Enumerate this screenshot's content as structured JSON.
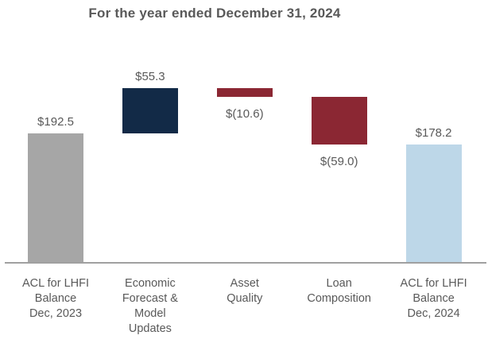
{
  "title": "For the year ended December 31, 2024",
  "colors": {
    "start_total_bar": "#A6A6A6",
    "increase_bar": "#122A47",
    "decrease_bar": "#8B2733",
    "end_total_bar": "#BDD7E8",
    "text": "#595959",
    "axis_line": "#A0A0A0"
  },
  "chart_data": {
    "type": "bar",
    "subtype": "waterfall",
    "title": "For the year ended December 31, 2024",
    "categories": [
      "ACL for LHFI Balance Dec, 2023",
      "Economic Forecast & Model Updates",
      "Asset Quality",
      "Loan Composition",
      "ACL for LHFI Balance Dec, 2024"
    ],
    "values": [
      192.5,
      55.3,
      -10.6,
      -59.0,
      178.2
    ],
    "xlabel": "",
    "ylabel": "",
    "gridlines": false,
    "legend": false,
    "bars": [
      {
        "category": "ACL for LHFI Balance Dec, 2023",
        "category_lines": [
          "ACL for LHFI",
          "Balance",
          "Dec, 2023"
        ],
        "value": 192.5,
        "display_value": "$192.5",
        "kind": "total",
        "color": "#A6A6A6",
        "value_label_position": "above"
      },
      {
        "category": "Economic Forecast & Model Updates",
        "category_lines": [
          "Economic",
          "Forecast &",
          "Model",
          "Updates"
        ],
        "value": 55.3,
        "display_value": "$55.3",
        "kind": "increase",
        "color": "#122A47",
        "value_label_position": "above"
      },
      {
        "category": "Asset Quality",
        "category_lines": [
          "Asset",
          "Quality"
        ],
        "value": -10.6,
        "display_value": "$(10.6)",
        "kind": "decrease",
        "color": "#8B2733",
        "value_label_position": "below"
      },
      {
        "category": "Loan Composition",
        "category_lines": [
          "Loan",
          "Composition"
        ],
        "value": -59.0,
        "display_value": "$(59.0)",
        "kind": "decrease",
        "color": "#8B2733",
        "value_label_position": "below"
      },
      {
        "category": "ACL for LHFI Balance Dec, 2024",
        "category_lines": [
          "ACL for LHFI",
          "Balance",
          "Dec, 2024"
        ],
        "value": 178.2,
        "display_value": "$178.2",
        "kind": "total",
        "color": "#BDD7E8",
        "value_label_position": "above"
      }
    ]
  }
}
